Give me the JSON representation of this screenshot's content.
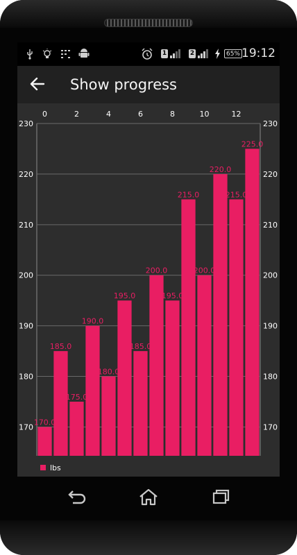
{
  "status_bar": {
    "time": "19:12",
    "battery_percent": "65%",
    "sim1_label": "1",
    "sim2_label": "2",
    "left_icons": [
      "usb-icon",
      "bulb-icon",
      "keypad-icon",
      "android-icon"
    ],
    "right_icons": [
      "alarm-clock-icon",
      "signal-icon",
      "signal-icon",
      "charging-icon",
      "battery-icon"
    ]
  },
  "app_bar": {
    "title": "Show progress",
    "back_icon": "back-arrow-icon"
  },
  "chart_data": {
    "type": "bar",
    "x": [
      0,
      1,
      2,
      3,
      4,
      5,
      6,
      7,
      8,
      9,
      10,
      11,
      12,
      13
    ],
    "values": [
      170.0,
      185.0,
      175.0,
      190.0,
      180.0,
      195.0,
      185.0,
      200.0,
      195.0,
      215.0,
      200.0,
      220.0,
      215.0,
      225.0
    ],
    "value_labels": [
      "170.0",
      "185.0",
      "175.0",
      "190.0",
      "180.0",
      "195.0",
      "185.0",
      "200.0",
      "195.0",
      "215.0",
      "200.0",
      "220.0",
      "215.0",
      "225.0"
    ],
    "x_ticks": [
      "0",
      "2",
      "4",
      "6",
      "8",
      "10",
      "12"
    ],
    "x_tick_values": [
      0,
      2,
      4,
      6,
      8,
      10,
      12
    ],
    "y_ticks": [
      "170",
      "180",
      "190",
      "200",
      "210",
      "220",
      "230"
    ],
    "y_tick_values": [
      170,
      180,
      190,
      200,
      210,
      220,
      230
    ],
    "ylim": [
      164.3,
      230
    ],
    "legend": "lbs",
    "legend_position": "bottom-left",
    "bar_color": "#e91e63",
    "grid": true,
    "background": "#2d2d2d"
  },
  "nav_bar": {
    "icons": [
      "back-icon",
      "home-icon",
      "recent-apps-icon"
    ]
  },
  "colors": {
    "accent": "#e91e63",
    "app_bar": "#212121",
    "status_bar": "#000000",
    "screen_bg": "#2d2d2d"
  }
}
